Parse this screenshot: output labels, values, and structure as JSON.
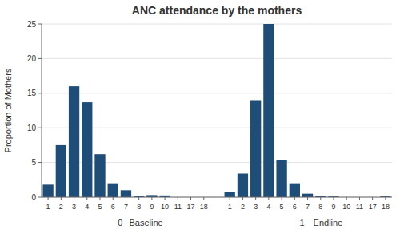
{
  "chart_data": {
    "type": "bar",
    "title": "ANC attendance by the mothers",
    "ylabel": "Proportion of Mothers",
    "color": "#1e4d78",
    "ylim": [
      0,
      25
    ],
    "yticks": [
      0,
      5,
      10,
      15,
      20,
      25
    ],
    "grid": true,
    "groups": [
      {
        "label": "0",
        "sublabel": "Baseline",
        "categories": [
          "1",
          "2",
          "3",
          "4",
          "5",
          "6",
          "7",
          "8",
          "9",
          "10",
          "11",
          "17",
          "18"
        ],
        "values": [
          1.8,
          7.5,
          16.0,
          13.7,
          6.2,
          2.0,
          1.0,
          0.2,
          0.3,
          0.25,
          0.0,
          0.0,
          0.0
        ]
      },
      {
        "label": "1",
        "sublabel": " Endline",
        "categories": [
          "1",
          "2",
          "3",
          "4",
          "5",
          "6",
          "7",
          "8",
          "9",
          "10",
          "11",
          "17",
          "18"
        ],
        "values": [
          0.8,
          3.4,
          14.0,
          25.0,
          5.3,
          2.0,
          0.5,
          0.15,
          0.1,
          0.0,
          0.0,
          0.0,
          0.1
        ]
      }
    ]
  }
}
